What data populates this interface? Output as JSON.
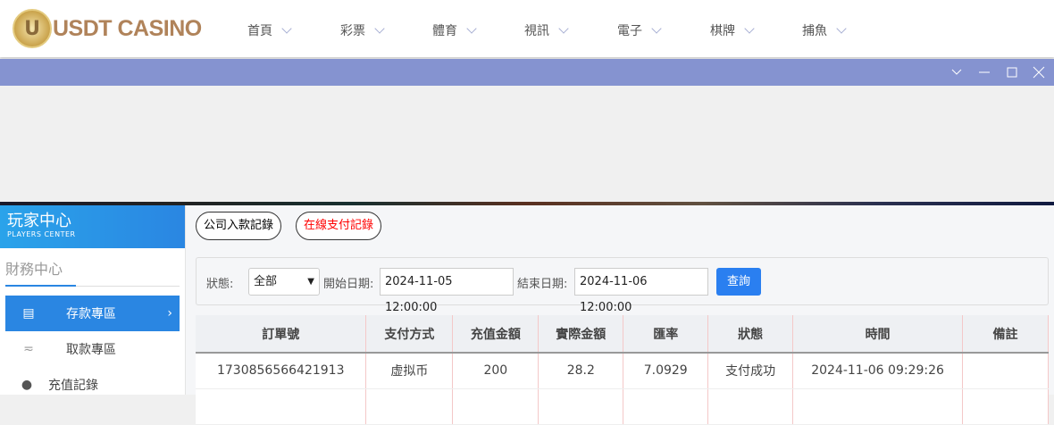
{
  "logo": {
    "text": "USDT CASINO",
    "mark": "U"
  },
  "nav": [
    "首頁",
    "彩票",
    "體育",
    "視訊",
    "電子",
    "棋牌",
    "捕魚"
  ],
  "window_icons": [
    "chevron-down-icon",
    "minimize-icon",
    "maximize-icon",
    "close-icon"
  ],
  "sidebar": {
    "title": "玩家中心",
    "subtitle": "PLAYERS CENTER",
    "section": "財務中心",
    "items": [
      {
        "label": "存款專區",
        "icon": "card-icon",
        "active": true
      },
      {
        "label": "取款專區",
        "icon": "hand-cash-icon"
      },
      {
        "label": "充值記錄",
        "icon": "money-bag-icon"
      }
    ]
  },
  "tabs": [
    {
      "label": "公司入款記錄"
    },
    {
      "label": "在線支付記錄",
      "color": "#ff0000"
    }
  ],
  "filter": {
    "status_label": "狀態:",
    "status_value": "全部",
    "start_label": "開始日期:",
    "start_value": "2024-11-05 12:00:00",
    "end_label": "結束日期:",
    "end_value": "2024-11-06 12:00:00",
    "query": "查詢"
  },
  "table": {
    "headers": [
      "訂單號",
      "支付方式",
      "充值金額",
      "實際金額",
      "匯率",
      "狀態",
      "時間",
      "備註"
    ],
    "rows": [
      [
        "1730856566421913",
        "虚拟币",
        "200",
        "28.2",
        "7.0929",
        "支付成功",
        "2024-11-06 09:29:26",
        ""
      ]
    ]
  },
  "colors": {
    "accent": "#2a86e2",
    "titlebar": "#8593d0"
  }
}
